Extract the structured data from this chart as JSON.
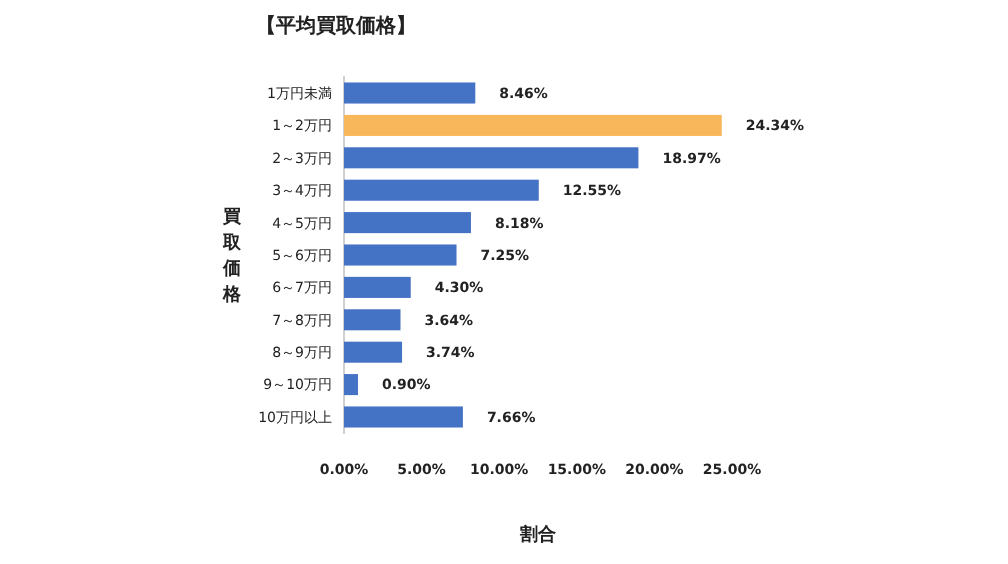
{
  "chart_data": {
    "type": "bar",
    "orientation": "horizontal",
    "title": "【平均買取価格】",
    "xlabel": "割合",
    "ylabel": "買取価格",
    "categories": [
      "1万円未満",
      "1～2万円",
      "2～3万円",
      "3～4万円",
      "4～5万円",
      "5～6万円",
      "6～7万円",
      "7～8万円",
      "8～9万円",
      "9～10万円",
      "10万円以上"
    ],
    "values": [
      8.46,
      24.34,
      18.97,
      12.55,
      8.18,
      7.25,
      4.3,
      3.64,
      3.74,
      0.9,
      7.66
    ],
    "value_labels": [
      "8.46%",
      "24.34%",
      "18.97%",
      "12.55%",
      "8.18%",
      "7.25%",
      "4.30%",
      "3.64%",
      "3.74%",
      "0.90%",
      "7.66%"
    ],
    "colors": [
      "#4472c4",
      "#f7b75a",
      "#4472c4",
      "#4472c4",
      "#4472c4",
      "#4472c4",
      "#4472c4",
      "#4472c4",
      "#4472c4",
      "#4472c4",
      "#4472c4"
    ],
    "xlim": [
      0,
      25
    ],
    "xticks": [
      {
        "value": 0,
        "label": "0.00%"
      },
      {
        "value": 5,
        "label": "5.00%"
      },
      {
        "value": 10,
        "label": "10.00%"
      },
      {
        "value": 15,
        "label": "15.00%"
      },
      {
        "value": 20,
        "label": "20.00%"
      },
      {
        "value": 25,
        "label": "25.00%"
      }
    ],
    "grid": false
  }
}
